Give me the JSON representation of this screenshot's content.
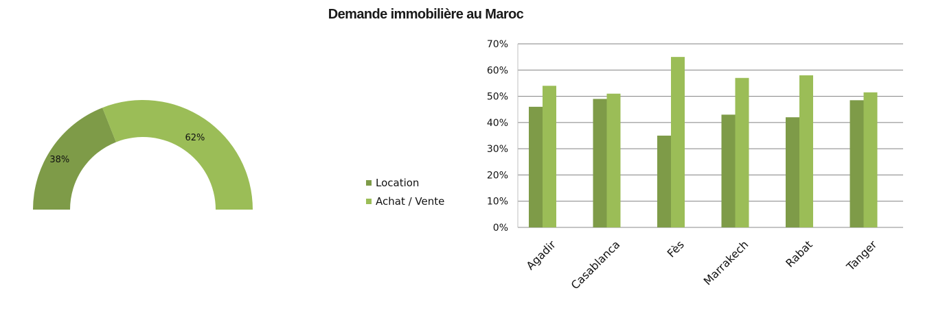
{
  "title": "Demande immobilière au Maroc",
  "colors": {
    "location": "#7e9b48",
    "achat": "#9bbd57",
    "grid": "#808080",
    "axis": "#bfbfbf"
  },
  "legend": {
    "location": "Location",
    "achat": "Achat / Vente"
  },
  "chart_data": [
    {
      "type": "pie",
      "style": "half-donut",
      "categories": [
        "Location",
        "Achat / Vente"
      ],
      "values": [
        38,
        62
      ],
      "labels": [
        "38%",
        "62%"
      ]
    },
    {
      "type": "bar",
      "categories": [
        "Agadir",
        "Casablanca",
        "Fès",
        "Marrakech",
        "Rabat",
        "Tanger"
      ],
      "series": [
        {
          "name": "Location",
          "values": [
            46,
            49,
            35,
            43,
            42,
            48.5
          ]
        },
        {
          "name": "Achat / Vente",
          "values": [
            54,
            51,
            65,
            57,
            58,
            51.5
          ]
        }
      ],
      "ylim": [
        0,
        70
      ],
      "yticks": [
        "0%",
        "10%",
        "20%",
        "30%",
        "40%",
        "50%",
        "60%",
        "70%"
      ],
      "grid": true,
      "legend": "left"
    }
  ]
}
